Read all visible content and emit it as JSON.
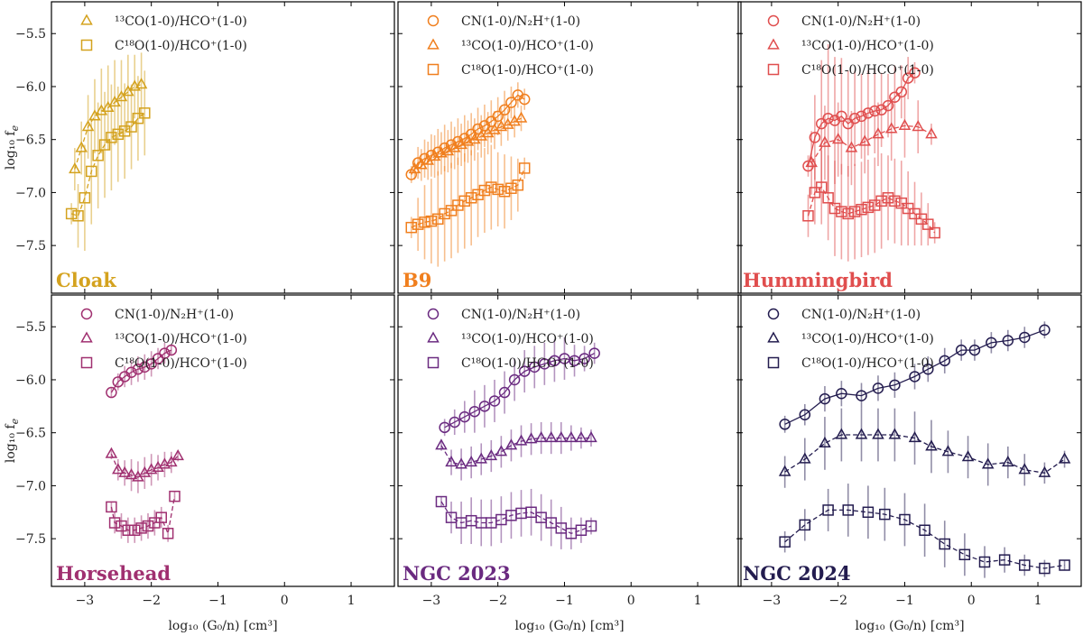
{
  "figure": {
    "xlabel": "log₁₀ (G₀/n) [cm³]",
    "ylabel": "log₁₀ f",
    "ylabel_sub": "e",
    "xticks": [
      -3,
      -2,
      -1,
      0,
      1
    ],
    "yticks": [
      -5.5,
      -6.0,
      -6.5,
      -7.0,
      -7.5
    ]
  },
  "legend_labels": {
    "cn": "CN(1-0)/N₂H⁺(1-0)",
    "co13": "¹³CO(1-0)/HCO⁺(1-0)",
    "c18o": "C¹⁸O(1-0)/HCO⁺(1-0)"
  },
  "chart_data": [
    {
      "type": "line",
      "title": "Cloak",
      "color": "#d4a21e",
      "xlim": [
        -3.5,
        1.65
      ],
      "ylim": [
        -7.95,
        -5.2
      ],
      "legend": [
        "co13",
        "c18o"
      ],
      "series": [
        {
          "name": "13CO(1-0)/HCO+(1-0)",
          "marker": "triangle",
          "x": [
            -3.15,
            -3.05,
            -2.95,
            -2.85,
            -2.75,
            -2.65,
            -2.55,
            -2.45,
            -2.35,
            -2.25,
            -2.15
          ],
          "y": [
            -6.78,
            -6.58,
            -6.38,
            -6.28,
            -6.23,
            -6.2,
            -6.15,
            -6.1,
            -6.05,
            -6.0,
            -5.98
          ],
          "err": [
            0.2,
            0.25,
            0.3,
            0.35,
            0.4,
            0.4,
            0.4,
            0.35,
            0.35,
            0.3,
            0.3
          ]
        },
        {
          "name": "C18O(1-0)/HCO+(1-0)",
          "marker": "square",
          "x": [
            -3.2,
            -3.1,
            -3.0,
            -2.9,
            -2.8,
            -2.7,
            -2.6,
            -2.5,
            -2.4,
            -2.3,
            -2.2,
            -2.1
          ],
          "y": [
            -7.2,
            -7.22,
            -7.05,
            -6.8,
            -6.65,
            -6.55,
            -6.48,
            -6.45,
            -6.42,
            -6.38,
            -6.3,
            -6.25
          ],
          "err": [
            0.1,
            0.3,
            0.5,
            0.5,
            0.5,
            0.5,
            0.5,
            0.45,
            0.45,
            0.4,
            0.4,
            0.4
          ]
        }
      ]
    },
    {
      "type": "line",
      "title": "B9",
      "color": "#f07f1e",
      "xlim": [
        -3.5,
        1.65
      ],
      "ylim": [
        -7.95,
        -5.2
      ],
      "legend": [
        "cn",
        "co13",
        "c18o"
      ],
      "series": [
        {
          "name": "CN(1-0)/N2H+(1-0)",
          "marker": "circle",
          "x": [
            -3.3,
            -3.2,
            -3.1,
            -3.0,
            -2.9,
            -2.8,
            -2.7,
            -2.6,
            -2.5,
            -2.4,
            -2.3,
            -2.2,
            -2.1,
            -2.0,
            -1.9,
            -1.8,
            -1.7,
            -1.6
          ],
          "y": [
            -6.83,
            -6.72,
            -6.68,
            -6.65,
            -6.62,
            -6.58,
            -6.55,
            -6.52,
            -6.49,
            -6.45,
            -6.4,
            -6.37,
            -6.33,
            -6.28,
            -6.22,
            -6.15,
            -6.08,
            -6.12
          ],
          "err": [
            0.08,
            0.15,
            0.18,
            0.2,
            0.22,
            0.22,
            0.22,
            0.22,
            0.22,
            0.2,
            0.2,
            0.2,
            0.2,
            0.18,
            0.18,
            0.15,
            0.12,
            0.1
          ]
        },
        {
          "name": "13CO(1-0)/HCO+(1-0)",
          "marker": "triangle",
          "x": [
            -3.25,
            -3.15,
            -3.05,
            -2.95,
            -2.85,
            -2.75,
            -2.65,
            -2.55,
            -2.45,
            -2.35,
            -2.25,
            -2.15,
            -2.05,
            -1.95,
            -1.85,
            -1.75,
            -1.65
          ],
          "y": [
            -6.78,
            -6.74,
            -6.7,
            -6.66,
            -6.63,
            -6.61,
            -6.58,
            -6.55,
            -6.52,
            -6.5,
            -6.47,
            -6.44,
            -6.41,
            -6.38,
            -6.36,
            -6.33,
            -6.3
          ],
          "err": [
            0.1,
            0.15,
            0.18,
            0.2,
            0.2,
            0.2,
            0.2,
            0.2,
            0.2,
            0.2,
            0.2,
            0.2,
            0.18,
            0.18,
            0.15,
            0.15,
            0.12
          ]
        },
        {
          "name": "C18O(1-0)/HCO+(1-0)",
          "marker": "square",
          "x": [
            -3.3,
            -3.2,
            -3.1,
            -3.0,
            -2.9,
            -2.8,
            -2.7,
            -2.6,
            -2.5,
            -2.4,
            -2.3,
            -2.2,
            -2.1,
            -2.0,
            -1.9,
            -1.8,
            -1.7,
            -1.6
          ],
          "y": [
            -7.33,
            -7.3,
            -7.28,
            -7.27,
            -7.25,
            -7.2,
            -7.17,
            -7.12,
            -7.08,
            -7.05,
            -7.02,
            -6.98,
            -6.95,
            -6.97,
            -6.99,
            -6.96,
            -6.93,
            -6.77
          ],
          "err": [
            0.1,
            0.25,
            0.35,
            0.4,
            0.45,
            0.45,
            0.45,
            0.45,
            0.45,
            0.45,
            0.4,
            0.4,
            0.4,
            0.35,
            0.35,
            0.3,
            0.25,
            0.1
          ]
        }
      ]
    },
    {
      "type": "line",
      "title": "Hummingbird",
      "color": "#e04e4e",
      "xlim": [
        -3.5,
        1.65
      ],
      "ylim": [
        -7.95,
        -5.2
      ],
      "legend": [
        "cn",
        "co13",
        "c18o"
      ],
      "series": [
        {
          "name": "CN(1-0)/N2H+(1-0)",
          "marker": "circle",
          "x": [
            -2.45,
            -2.35,
            -2.25,
            -2.15,
            -2.05,
            -1.95,
            -1.85,
            -1.75,
            -1.65,
            -1.55,
            -1.45,
            -1.35,
            -1.25,
            -1.15,
            -1.05,
            -0.95,
            -0.85
          ],
          "y": [
            -6.75,
            -6.48,
            -6.35,
            -6.3,
            -6.32,
            -6.28,
            -6.35,
            -6.3,
            -6.28,
            -6.25,
            -6.23,
            -6.22,
            -6.18,
            -6.1,
            -6.05,
            -5.92,
            -5.87
          ],
          "err": [
            0.1,
            0.4,
            0.6,
            0.7,
            0.6,
            0.55,
            0.5,
            0.45,
            0.4,
            0.4,
            0.4,
            0.35,
            0.3,
            0.3,
            0.25,
            0.2,
            0.1
          ]
        },
        {
          "name": "13CO(1-0)/HCO+(1-0)",
          "marker": "triangle",
          "x": [
            -2.4,
            -2.2,
            -2.0,
            -1.8,
            -1.6,
            -1.4,
            -1.2,
            -1.0,
            -0.8,
            -0.6
          ],
          "y": [
            -6.72,
            -6.53,
            -6.5,
            -6.58,
            -6.52,
            -6.45,
            -6.4,
            -6.37,
            -6.38,
            -6.45
          ],
          "err": [
            0.3,
            0.35,
            0.35,
            0.35,
            0.3,
            0.3,
            0.3,
            0.3,
            0.25,
            0.1
          ]
        },
        {
          "name": "C18O(1-0)/HCO+(1-0)",
          "marker": "square",
          "x": [
            -2.45,
            -2.35,
            -2.25,
            -2.15,
            -2.05,
            -1.95,
            -1.85,
            -1.75,
            -1.65,
            -1.55,
            -1.45,
            -1.35,
            -1.25,
            -1.15,
            -1.05,
            -0.95,
            -0.85,
            -0.75,
            -0.65,
            -0.55
          ],
          "y": [
            -7.22,
            -7.0,
            -6.95,
            -7.05,
            -7.15,
            -7.18,
            -7.2,
            -7.18,
            -7.16,
            -7.14,
            -7.12,
            -7.08,
            -7.05,
            -7.08,
            -7.1,
            -7.15,
            -7.2,
            -7.25,
            -7.3,
            -7.38
          ],
          "err": [
            0.2,
            0.3,
            0.35,
            0.4,
            0.45,
            0.45,
            0.45,
            0.45,
            0.45,
            0.45,
            0.45,
            0.45,
            0.4,
            0.4,
            0.4,
            0.35,
            0.3,
            0.25,
            0.2,
            0.1
          ]
        }
      ]
    },
    {
      "type": "line",
      "title": "Horsehead",
      "color": "#a03070",
      "xlim": [
        -3.5,
        1.65
      ],
      "ylim": [
        -7.95,
        -5.2
      ],
      "legend": [
        "cn",
        "co13",
        "c18o"
      ],
      "series": [
        {
          "name": "CN(1-0)/N2H+(1-0)",
          "marker": "circle",
          "x": [
            -2.6,
            -2.5,
            -2.4,
            -2.3,
            -2.2,
            -2.1,
            -2.0,
            -1.9,
            -1.8,
            -1.7
          ],
          "y": [
            -6.12,
            -6.02,
            -5.97,
            -5.93,
            -5.9,
            -5.88,
            -5.85,
            -5.8,
            -5.75,
            -5.72
          ],
          "err": [
            0.05,
            0.08,
            0.1,
            0.12,
            0.12,
            0.12,
            0.12,
            0.1,
            0.1,
            0.05
          ]
        },
        {
          "name": "13CO(1-0)/HCO+(1-0)",
          "marker": "triangle",
          "x": [
            -2.6,
            -2.5,
            -2.4,
            -2.3,
            -2.2,
            -2.1,
            -2.0,
            -1.9,
            -1.8,
            -1.7,
            -1.6
          ],
          "y": [
            -6.7,
            -6.85,
            -6.88,
            -6.9,
            -6.92,
            -6.88,
            -6.85,
            -6.83,
            -6.8,
            -6.78,
            -6.72
          ],
          "err": [
            0.05,
            0.1,
            0.12,
            0.15,
            0.15,
            0.15,
            0.15,
            0.12,
            0.12,
            0.1,
            0.05
          ]
        },
        {
          "name": "C18O(1-0)/HCO+(1-0)",
          "marker": "square",
          "x": [
            -2.6,
            -2.55,
            -2.45,
            -2.35,
            -2.25,
            -2.15,
            -2.05,
            -1.95,
            -1.85,
            -1.75,
            -1.65
          ],
          "y": [
            -7.2,
            -7.35,
            -7.38,
            -7.42,
            -7.42,
            -7.4,
            -7.38,
            -7.35,
            -7.3,
            -7.45,
            -7.1
          ],
          "err": [
            0.05,
            0.1,
            0.12,
            0.12,
            0.12,
            0.12,
            0.12,
            0.12,
            0.1,
            0.08,
            0.05
          ]
        }
      ]
    },
    {
      "type": "line",
      "title": "NGC 2023",
      "color": "#6a2a80",
      "xlim": [
        -3.5,
        1.65
      ],
      "ylim": [
        -7.95,
        -5.2
      ],
      "legend": [
        "cn",
        "co13",
        "c18o"
      ],
      "series": [
        {
          "name": "CN(1-0)/N2H+(1-0)",
          "marker": "circle",
          "x": [
            -2.8,
            -2.65,
            -2.5,
            -2.35,
            -2.2,
            -2.05,
            -1.9,
            -1.75,
            -1.6,
            -1.45,
            -1.3,
            -1.15,
            -1.0,
            -0.85,
            -0.7,
            -0.55
          ],
          "y": [
            -6.45,
            -6.4,
            -6.35,
            -6.3,
            -6.25,
            -6.2,
            -6.12,
            -6.0,
            -5.92,
            -5.88,
            -5.85,
            -5.82,
            -5.8,
            -5.82,
            -5.8,
            -5.75
          ],
          "err": [
            0.08,
            0.12,
            0.15,
            0.2,
            0.2,
            0.2,
            0.2,
            0.2,
            0.2,
            0.2,
            0.2,
            0.2,
            0.2,
            0.15,
            0.12,
            0.1
          ]
        },
        {
          "name": "13CO(1-0)/HCO+(1-0)",
          "marker": "triangle",
          "x": [
            -2.85,
            -2.7,
            -2.55,
            -2.4,
            -2.25,
            -2.1,
            -1.95,
            -1.8,
            -1.65,
            -1.5,
            -1.35,
            -1.2,
            -1.05,
            -0.9,
            -0.75,
            -0.6
          ],
          "y": [
            -6.62,
            -6.78,
            -6.8,
            -6.78,
            -6.75,
            -6.72,
            -6.68,
            -6.62,
            -6.58,
            -6.56,
            -6.55,
            -6.55,
            -6.55,
            -6.55,
            -6.55,
            -6.55
          ],
          "err": [
            0.05,
            0.12,
            0.15,
            0.15,
            0.15,
            0.15,
            0.15,
            0.15,
            0.15,
            0.15,
            0.15,
            0.15,
            0.15,
            0.12,
            0.1,
            0.08
          ]
        },
        {
          "name": "C18O(1-0)/HCO+(1-0)",
          "marker": "square",
          "x": [
            -2.85,
            -2.7,
            -2.55,
            -2.4,
            -2.25,
            -2.1,
            -1.95,
            -1.8,
            -1.65,
            -1.5,
            -1.35,
            -1.2,
            -1.05,
            -0.9,
            -0.75,
            -0.6
          ],
          "y": [
            -7.15,
            -7.3,
            -7.35,
            -7.33,
            -7.35,
            -7.35,
            -7.32,
            -7.28,
            -7.26,
            -7.25,
            -7.3,
            -7.35,
            -7.4,
            -7.45,
            -7.42,
            -7.38
          ],
          "err": [
            0.05,
            0.15,
            0.2,
            0.22,
            0.22,
            0.22,
            0.22,
            0.22,
            0.22,
            0.22,
            0.22,
            0.22,
            0.2,
            0.15,
            0.12,
            0.08
          ]
        }
      ]
    },
    {
      "type": "line",
      "title": "NGC 2024",
      "color": "#231c4f",
      "xlim": [
        -3.5,
        1.65
      ],
      "ylim": [
        -7.95,
        -5.2
      ],
      "legend": [
        "cn",
        "co13",
        "c18o"
      ],
      "series": [
        {
          "name": "CN(1-0)/N2H+(1-0)",
          "marker": "circle",
          "x": [
            -2.8,
            -2.5,
            -2.2,
            -1.95,
            -1.65,
            -1.4,
            -1.15,
            -0.85,
            -0.65,
            -0.4,
            -0.15,
            0.05,
            0.3,
            0.55,
            0.8,
            1.1
          ],
          "y": [
            -6.42,
            -6.33,
            -6.18,
            -6.13,
            -6.15,
            -6.08,
            -6.05,
            -5.97,
            -5.9,
            -5.82,
            -5.72,
            -5.72,
            -5.65,
            -5.63,
            -5.6,
            -5.53
          ],
          "err": [
            0.08,
            0.1,
            0.12,
            0.12,
            0.12,
            0.12,
            0.12,
            0.12,
            0.12,
            0.12,
            0.1,
            0.1,
            0.1,
            0.1,
            0.1,
            0.08
          ]
        },
        {
          "name": "13CO(1-0)/HCO+(1-0)",
          "marker": "triangle",
          "x": [
            -2.8,
            -2.5,
            -2.2,
            -1.95,
            -1.65,
            -1.4,
            -1.15,
            -0.85,
            -0.6,
            -0.35,
            -0.05,
            0.25,
            0.55,
            0.8,
            1.1,
            1.4
          ],
          "y": [
            -6.87,
            -6.75,
            -6.6,
            -6.52,
            -6.52,
            -6.52,
            -6.52,
            -6.55,
            -6.63,
            -6.68,
            -6.73,
            -6.8,
            -6.78,
            -6.85,
            -6.88,
            -6.75
          ],
          "err": [
            0.15,
            0.2,
            0.25,
            0.25,
            0.25,
            0.25,
            0.25,
            0.25,
            0.25,
            0.2,
            0.2,
            0.2,
            0.15,
            0.15,
            0.1,
            0.08
          ]
        },
        {
          "name": "C18O(1-0)/HCO+(1-0)",
          "marker": "square",
          "x": [
            -2.8,
            -2.5,
            -2.15,
            -1.85,
            -1.55,
            -1.3,
            -1.0,
            -0.7,
            -0.4,
            -0.1,
            0.2,
            0.5,
            0.8,
            1.1,
            1.4
          ],
          "y": [
            -7.53,
            -7.37,
            -7.23,
            -7.23,
            -7.25,
            -7.27,
            -7.32,
            -7.42,
            -7.55,
            -7.65,
            -7.72,
            -7.7,
            -7.75,
            -7.78,
            -7.75
          ],
          "err": [
            0.1,
            0.15,
            0.2,
            0.25,
            0.25,
            0.25,
            0.25,
            0.25,
            0.22,
            0.2,
            0.15,
            0.12,
            0.1,
            0.08,
            0.05
          ]
        }
      ]
    }
  ]
}
